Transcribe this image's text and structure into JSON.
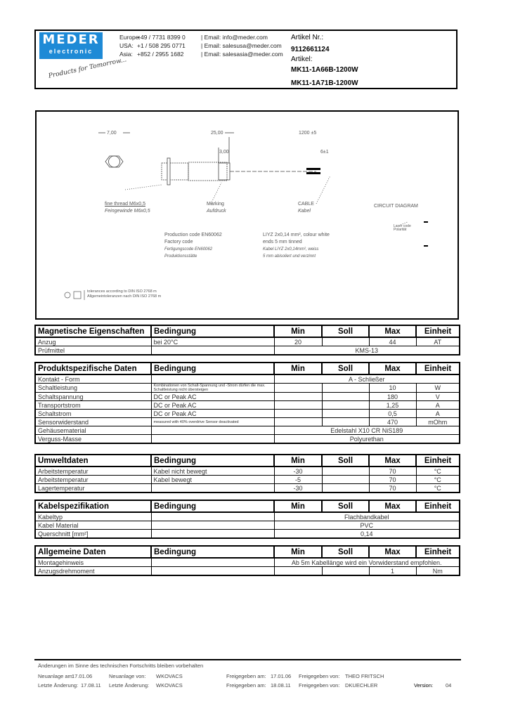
{
  "header": {
    "logo": {
      "brand": "MEDER",
      "sub": "electronic",
      "slogan": "Products for Tomorrow...",
      "color": "#1e8ad6"
    },
    "contacts": [
      {
        "region": "Europe:",
        "phone": "+49 / 7731 8399 0",
        "email": "| Email: info@meder.com"
      },
      {
        "region": "USA:",
        "phone": "+1 / 508 295 0771",
        "email": "| Email: salesusa@meder.com"
      },
      {
        "region": "Asia:",
        "phone": "+852 / 2955 1682",
        "email": "| Email: salesasia@meder.com"
      }
    ],
    "artikel_nr_label": "Artikel Nr.:",
    "artikel_nr": "9112661124",
    "artikel_label": "Artikel:",
    "artikel": [
      "MK11-1A66B-1200W",
      "MK11-1A71B-1200W"
    ]
  },
  "drawing": {
    "dims": {
      "d1": "7,00",
      "d2": "25,00",
      "d3": "1200 ±5",
      "d4": "3,00",
      "d5": "6±1"
    },
    "labels": {
      "thread_en": "fine thread M6x0,5",
      "thread_de": "Feingewinde M6x0,5",
      "marking_en": "Marking",
      "marking_de": "Aufdruck",
      "cable_en": "CABLE",
      "cable_de": "Kabel",
      "circuit": "CIRCUIT DIAGRAM",
      "circuit_note": "Laser code Polarität",
      "prod_en1": "Production code EN60062",
      "prod_en2": "Factory code",
      "prod_de1": "Fertigungscode EN60062",
      "prod_de2": "Produktionsstätte",
      "cable_spec_en1": "LIYZ 2x0,14 mm², colour white",
      "cable_spec_en2": "ends 5 mm tinned",
      "cable_spec_de1": "Kabel LiYZ 2x0,14mm², weiss",
      "cable_spec_de2": "5 mm abisoliert und verzinnt",
      "tolerance1": "tolerances according to DIN ISO 2768 m",
      "tolerance2": "Allgemeintoleranzen nach DIN ISO 2768 m"
    }
  },
  "columns": {
    "cond": "Bedingung",
    "min": "Min",
    "soll": "Soll",
    "max": "Max",
    "unit": "Einheit"
  },
  "tables": [
    {
      "title": "Magnetische Eigenschaften",
      "rows": [
        {
          "label": "Anzug",
          "cond": "bei 20°C",
          "min": "20",
          "soll": "",
          "max": "44",
          "unit": "AT"
        },
        {
          "label": "Prüfmittel",
          "cond": "",
          "span": "KMS-13"
        }
      ]
    },
    {
      "title": "Produktspezifische Daten",
      "rows": [
        {
          "label": "Kontakt - Form",
          "cond": "",
          "span": "A - Schließer"
        },
        {
          "label": "Schaltleistung",
          "cond": "Kombinationen von Schalt-Spannung und -Strom dürfen die max. Schaltleistung nicht übersteigen",
          "min": "",
          "soll": "",
          "max": "10",
          "unit": "W"
        },
        {
          "label": "Schaltspannung",
          "cond": "DC or Peak AC",
          "min": "",
          "soll": "",
          "max": "180",
          "unit": "V"
        },
        {
          "label": "Transportstrom",
          "cond": "DC or Peak AC",
          "min": "",
          "soll": "",
          "max": "1,25",
          "unit": "A"
        },
        {
          "label": "Schaltstrom",
          "cond": "DC or Peak AC",
          "min": "",
          "soll": "",
          "max": "0,5",
          "unit": "A"
        },
        {
          "label": "Sensorwiderstand",
          "cond": "measured with 40% overdrive Sensor deactivated",
          "min": "",
          "soll": "",
          "max": "470",
          "unit": "mOhm"
        },
        {
          "label": "Gehäusematerial",
          "cond": "",
          "span": "Edelstahl X10 CR NiS189"
        },
        {
          "label": "Verguss-Masse",
          "cond": "",
          "span": "Polyurethan"
        }
      ]
    },
    {
      "title": "Umweltdaten",
      "rows": [
        {
          "label": "Arbeitstemperatur",
          "cond": "Kabel nicht bewegt",
          "min": "-30",
          "soll": "",
          "max": "70",
          "unit": "°C"
        },
        {
          "label": "Arbeitstemperatur",
          "cond": "Kabel bewegt",
          "min": "-5",
          "soll": "",
          "max": "70",
          "unit": "°C"
        },
        {
          "label": "Lagertemperatur",
          "cond": "",
          "min": "-30",
          "soll": "",
          "max": "70",
          "unit": "°C"
        }
      ]
    },
    {
      "title": "Kabelspezifikation",
      "rows": [
        {
          "label": "Kabeltyp",
          "cond": "",
          "span": "Flachbandkabel"
        },
        {
          "label": "Kabel Material",
          "cond": "",
          "span": "PVC"
        },
        {
          "label": "Querschnitt [mm²]",
          "cond": "",
          "span": "0,14"
        }
      ]
    },
    {
      "title": "Allgemeine Daten",
      "rows": [
        {
          "label": "Montagehinweis",
          "cond": "",
          "span": "Ab 5m Kabellänge wird ein Vorwiderstand empfohlen."
        },
        {
          "label": "Anzugsdrehmoment",
          "cond": "",
          "min": "",
          "soll": "",
          "max": "1",
          "unit": "Nm"
        }
      ]
    }
  ],
  "footer": {
    "note": "Änderungen im Sinne des technischen Fortschritts bleiben vorbehalten",
    "row1": {
      "l1": "Neuanlage am:",
      "v1": "17.01.06",
      "l2": "Neuanlage von:",
      "v2": "WKOVACS",
      "l3": "Freigegeben am:",
      "v3": "17.01.06",
      "l4": "Freigegeben von:",
      "v4": "THEO FRITSCH"
    },
    "row2": {
      "l1": "Letzte Änderung:",
      "v1": "17.08.11",
      "l2": "Letzte Änderung:",
      "v2": "WKOVACS",
      "l3": "Freigegeben am:",
      "v3": "18.08.11",
      "l4": "Freigegeben von:",
      "v4": "DKUECHLER",
      "l5": "Version:",
      "v5": "04"
    }
  }
}
